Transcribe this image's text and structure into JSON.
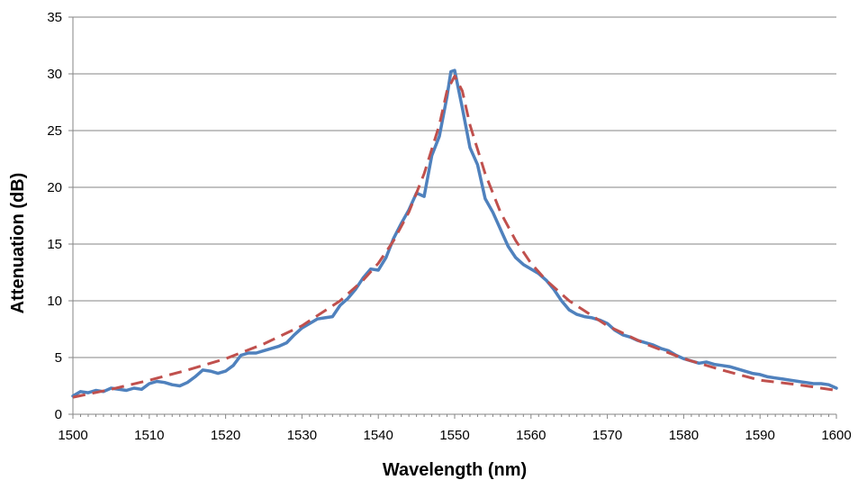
{
  "chart_data": {
    "type": "line",
    "xlabel": "Wavelength (nm)",
    "ylabel": "Attenuation (dB)",
    "xlim": [
      1500,
      1600
    ],
    "ylim": [
      0,
      35
    ],
    "xticks": [
      1500,
      1510,
      1520,
      1530,
      1540,
      1550,
      1560,
      1570,
      1580,
      1590,
      1600
    ],
    "yticks": [
      0,
      5,
      10,
      15,
      20,
      25,
      30,
      35
    ],
    "grid": "horizontal",
    "legend": "none",
    "series": [
      {
        "style": "solid",
        "color": "#4f81bd",
        "x": [
          1500,
          1501,
          1502,
          1503,
          1504,
          1505,
          1506,
          1507,
          1508,
          1509,
          1510,
          1511,
          1512,
          1513,
          1514,
          1515,
          1516,
          1517,
          1518,
          1519,
          1520,
          1521,
          1522,
          1523,
          1524,
          1525,
          1526,
          1527,
          1528,
          1529,
          1530,
          1531,
          1532,
          1533,
          1534,
          1535,
          1536,
          1537,
          1538,
          1539,
          1540,
          1541,
          1542,
          1543,
          1544,
          1545,
          1546,
          1547,
          1548,
          1549,
          1549.5,
          1550,
          1551,
          1552,
          1553,
          1554,
          1555,
          1556,
          1557,
          1558,
          1559,
          1560,
          1561,
          1562,
          1563,
          1564,
          1565,
          1566,
          1567,
          1568,
          1569,
          1570,
          1571,
          1572,
          1573,
          1574,
          1575,
          1576,
          1577,
          1578,
          1579,
          1580,
          1581,
          1582,
          1583,
          1584,
          1585,
          1586,
          1587,
          1588,
          1589,
          1590,
          1591,
          1592,
          1593,
          1594,
          1595,
          1596,
          1597,
          1598,
          1599,
          1600
        ],
        "y": [
          1.6,
          2.0,
          1.9,
          2.1,
          2.0,
          2.3,
          2.2,
          2.1,
          2.3,
          2.2,
          2.7,
          2.9,
          2.8,
          2.6,
          2.5,
          2.8,
          3.3,
          3.9,
          3.8,
          3.6,
          3.8,
          4.3,
          5.2,
          5.4,
          5.4,
          5.6,
          5.8,
          6.0,
          6.3,
          7.0,
          7.6,
          8.0,
          8.4,
          8.5,
          8.6,
          9.6,
          10.2,
          11.0,
          12.0,
          12.8,
          12.7,
          13.8,
          15.5,
          16.8,
          18.0,
          19.5,
          19.2,
          22.8,
          24.5,
          28.0,
          30.2,
          30.3,
          27.0,
          23.5,
          22.0,
          19.0,
          17.8,
          16.3,
          14.8,
          13.8,
          13.2,
          12.8,
          12.4,
          11.8,
          11.0,
          10.0,
          9.2,
          8.8,
          8.6,
          8.5,
          8.3,
          8.0,
          7.4,
          7.0,
          6.8,
          6.5,
          6.3,
          6.1,
          5.8,
          5.6,
          5.2,
          4.9,
          4.7,
          4.5,
          4.6,
          4.4,
          4.3,
          4.2,
          4.0,
          3.8,
          3.6,
          3.5,
          3.3,
          3.2,
          3.1,
          3.0,
          2.9,
          2.8,
          2.7,
          2.7,
          2.6,
          2.3
        ]
      },
      {
        "style": "dashed",
        "color": "#c0504d",
        "x": [
          1500,
          1505,
          1510,
          1515,
          1520,
          1525,
          1530,
          1535,
          1538,
          1540,
          1542,
          1544,
          1546,
          1548,
          1549,
          1550,
          1551,
          1552,
          1554,
          1556,
          1558,
          1560,
          1562,
          1565,
          1570,
          1575,
          1580,
          1585,
          1590,
          1595,
          1600
        ],
        "y": [
          1.5,
          2.2,
          3.0,
          3.9,
          4.9,
          6.2,
          7.8,
          10.0,
          11.8,
          13.3,
          15.3,
          17.8,
          21.2,
          25.5,
          28.5,
          29.8,
          28.5,
          25.5,
          21.2,
          17.8,
          15.3,
          13.3,
          11.8,
          10.0,
          7.8,
          6.2,
          4.9,
          3.9,
          3.0,
          2.6,
          2.1
        ]
      }
    ]
  }
}
